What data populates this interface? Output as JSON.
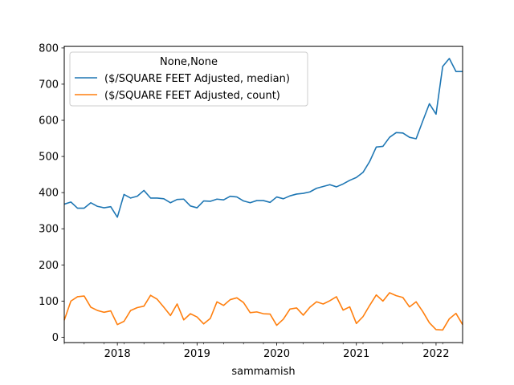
{
  "chart_data": {
    "type": "line",
    "xlabel": "sammamish",
    "ylabel": "",
    "x_start": "2017-05",
    "xlim": [
      "2017-05",
      "2022-05"
    ],
    "ylim": [
      -15,
      805
    ],
    "x_ticks": [
      "2018",
      "2019",
      "2020",
      "2021",
      "2022"
    ],
    "y_ticks": [
      "0",
      "100",
      "200",
      "300",
      "400",
      "500",
      "600",
      "700",
      "800"
    ],
    "legend": {
      "title": "None,None",
      "placement": "upper-left"
    },
    "series": [
      {
        "name": "($/SQUARE FEET Adjusted, median)",
        "color": "#1f77b4",
        "values": [
          368,
          374,
          357,
          357,
          372,
          362,
          358,
          361,
          332,
          395,
          385,
          390,
          406,
          385,
          385,
          383,
          372,
          381,
          382,
          363,
          358,
          377,
          376,
          382,
          380,
          390,
          388,
          377,
          372,
          378,
          378,
          373,
          388,
          383,
          391,
          396,
          398,
          402,
          412,
          417,
          422,
          416,
          424,
          434,
          442,
          456,
          486,
          526,
          528,
          553,
          566,
          565,
          553,
          549,
          598,
          646,
          617,
          749,
          771,
          735,
          735
        ]
      },
      {
        "name": "($/SQUARE FEET Adjusted, count)",
        "color": "#ff7f0e",
        "values": [
          47,
          100,
          112,
          114,
          83,
          74,
          69,
          73,
          35,
          44,
          74,
          82,
          86,
          116,
          105,
          83,
          60,
          92,
          48,
          65,
          56,
          37,
          52,
          98,
          88,
          104,
          109,
          96,
          68,
          70,
          65,
          64,
          33,
          50,
          78,
          81,
          61,
          83,
          98,
          92,
          101,
          112,
          75,
          84,
          38,
          57,
          88,
          117,
          100,
          123,
          115,
          110,
          84,
          98,
          71,
          40,
          21,
          20,
          51,
          66,
          35
        ]
      }
    ]
  }
}
